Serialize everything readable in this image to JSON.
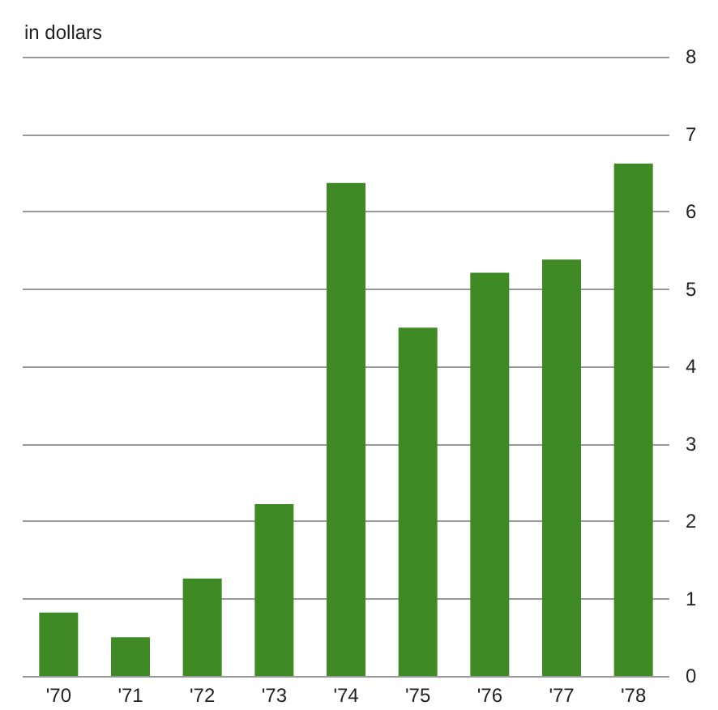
{
  "chart_data": {
    "type": "bar",
    "ylabel": "in dollars",
    "categories": [
      "'70",
      "'71",
      "'72",
      "'73",
      "'74",
      "'75",
      "'76",
      "'77",
      "'78"
    ],
    "values": [
      0.82,
      0.5,
      1.26,
      2.22,
      6.37,
      4.5,
      5.21,
      5.38,
      6.62
    ],
    "color": "#3f8a24",
    "ylim": [
      0,
      8
    ],
    "yticks": [
      0,
      1,
      2,
      3,
      4,
      5,
      6,
      7,
      8
    ],
    "grid": "y"
  }
}
